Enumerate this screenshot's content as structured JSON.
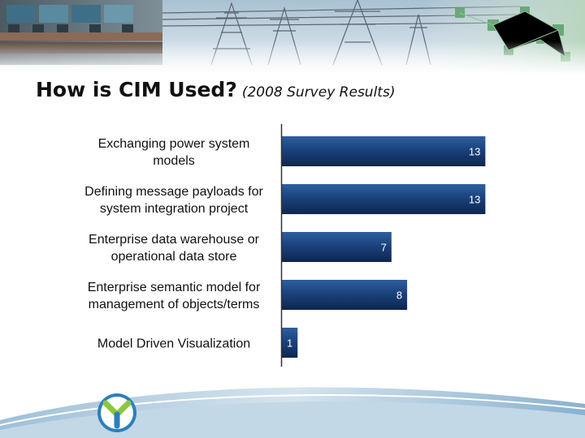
{
  "slide": {
    "title": "How is CIM Used?",
    "subtitle": "(2008 Survey Results)"
  },
  "colors": {
    "bar_top": "#2e5f9e",
    "bar_mid": "#1a3f78",
    "bar_bottom": "#0e2650",
    "axis": "#333333",
    "banner_sky": "#c9d9e4",
    "footer_swoosh": "#6f9fc3"
  },
  "chart_data": {
    "type": "bar",
    "orientation": "horizontal",
    "categories": [
      [
        "Exchanging power system",
        "models"
      ],
      [
        "Defining message payloads for",
        "system integration project"
      ],
      [
        "Enterprise data warehouse or",
        "operational data store"
      ],
      [
        "Enterprise semantic model for",
        "management of objects/terms"
      ],
      [
        "Model Driven Visualization"
      ]
    ],
    "values": [
      13,
      13,
      7,
      8,
      1
    ],
    "value_labels": [
      "13",
      "13",
      "7",
      "8",
      "1"
    ],
    "xlim": [
      0,
      13.5
    ],
    "grid": false,
    "legend": "none"
  }
}
